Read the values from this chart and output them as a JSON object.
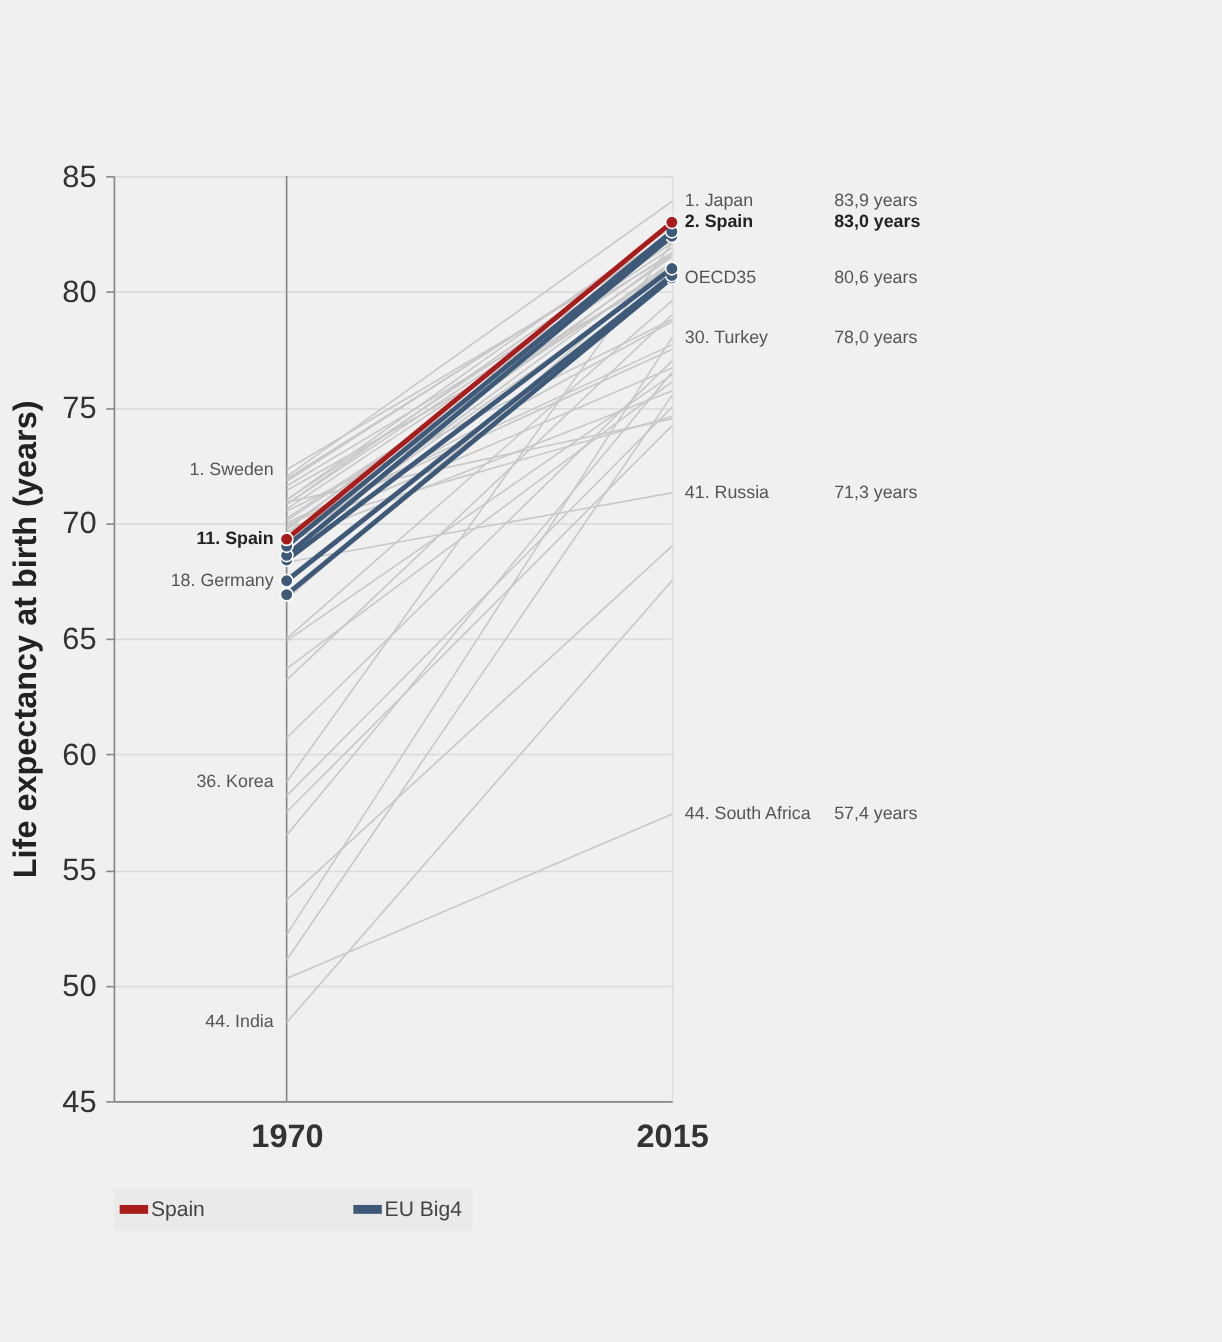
{
  "chart_data": {
    "type": "line",
    "ylabel": "Life expectancy at birth (years)",
    "categories": [
      "1970",
      "2015"
    ],
    "ylim": [
      45,
      85
    ],
    "yticks": [
      45,
      50,
      55,
      60,
      65,
      70,
      75,
      80,
      85
    ],
    "grid": "y",
    "legend": "bottom",
    "ref_lines": [
      {
        "axis": "x",
        "value": "1970",
        "color": "#888888"
      }
    ],
    "series": [
      {
        "color": "#c8c8c8",
        "values": [
          72.0,
          83.9
        ]
      },
      {
        "color": "#c8c8c8",
        "values": [
          72.3,
          82.2
        ]
      },
      {
        "color": "#c8c8c8",
        "values": [
          71.9,
          82.4
        ]
      },
      {
        "color": "#c8c8c8",
        "values": [
          71.6,
          81.6
        ]
      },
      {
        "color": "#c8c8c8",
        "values": [
          71.8,
          82.5
        ]
      },
      {
        "color": "#c8c8c8",
        "values": [
          71.4,
          80.8
        ]
      },
      {
        "color": "#c8c8c8",
        "values": [
          71.0,
          82.8
        ]
      },
      {
        "color": "#c8c8c8",
        "values": [
          71.0,
          82.1
        ]
      },
      {
        "color": "#c8c8c8",
        "values": [
          70.8,
          81.9
        ]
      },
      {
        "color": "#c8c8c8",
        "values": [
          70.8,
          82.5
        ]
      },
      {
        "color": "#c8c8c8",
        "values": [
          70.6,
          81.7
        ]
      },
      {
        "color": "#c8c8c8",
        "values": [
          70.5,
          78.8
        ]
      },
      {
        "color": "#c8c8c8",
        "values": [
          70.2,
          81.1
        ]
      },
      {
        "color": "#c8c8c8",
        "values": [
          70.1,
          81.1
        ]
      },
      {
        "color": "#c8c8c8",
        "values": [
          69.6,
          78.7
        ]
      },
      {
        "color": "#c8c8c8",
        "values": [
          69.7,
          82.4
        ]
      },
      {
        "color": "#c8c8c8",
        "values": [
          69.8,
          81.5
        ]
      },
      {
        "color": "#c8c8c8",
        "values": [
          69.3,
          81.6
        ]
      },
      {
        "color": "#c8c8c8",
        "values": [
          69.0,
          81.3
        ]
      },
      {
        "color": "#c8c8c8",
        "values": [
          69.6,
          76.7
        ]
      },
      {
        "color": "#c8c8c8",
        "values": [
          69.2,
          75.7
        ]
      },
      {
        "color": "#c8c8c8",
        "values": [
          69.9,
          77.5
        ]
      },
      {
        "color": "#c8c8c8",
        "values": [
          70.0,
          77.7
        ]
      },
      {
        "color": "#c8c8c8",
        "values": [
          69.8,
          74.6
        ]
      },
      {
        "color": "#c8c8c8",
        "values": [
          70.9,
          74.5
        ]
      },
      {
        "color": "#c8c8c8",
        "values": [
          69.0,
          80.9
        ]
      },
      {
        "color": "#c8c8c8",
        "values": [
          66.7,
          81.3
        ]
      },
      {
        "color": "#c8c8c8",
        "values": [
          65.0,
          79.6
        ]
      },
      {
        "color": "#c8c8c8",
        "values": [
          64.9,
          76.4
        ]
      },
      {
        "color": "#c8c8c8",
        "values": [
          63.7,
          76.1
        ]
      },
      {
        "color": "#c8c8c8",
        "values": [
          63.2,
          79.0
        ]
      },
      {
        "color": "#c8c8c8",
        "values": [
          60.7,
          77.0
        ]
      },
      {
        "color": "#c8c8c8",
        "values": [
          58.8,
          82.1
        ]
      },
      {
        "color": "#c8c8c8",
        "values": [
          58.2,
          75.0
        ]
      },
      {
        "color": "#c8c8c8",
        "values": [
          57.5,
          74.2
        ]
      },
      {
        "color": "#c8c8c8",
        "values": [
          56.5,
          76.5
        ]
      },
      {
        "color": "#c8c8c8",
        "values": [
          53.7,
          69.0
        ]
      },
      {
        "color": "#c8c8c8",
        "values": [
          52.2,
          78.0
        ]
      },
      {
        "color": "#c8c8c8",
        "values": [
          51.1,
          75.5
        ]
      },
      {
        "color": "#c8c8c8",
        "values": [
          68.3,
          71.3
        ]
      },
      {
        "color": "#c8c8c8",
        "values": [
          50.3,
          57.4
        ]
      },
      {
        "color": "#c8c8c8",
        "values": [
          48.4,
          67.5
        ]
      },
      {
        "color": "#3f5a78",
        "values": [
          66.9,
          80.6
        ],
        "marker": "circle"
      },
      {
        "color": "#3f5a78",
        "values": [
          67.5,
          80.7
        ],
        "marker": "circle"
      },
      {
        "color": "#3f5a78",
        "values": [
          68.4,
          81.0
        ],
        "marker": "circle"
      },
      {
        "color": "#3f5a78",
        "values": [
          68.6,
          82.4
        ],
        "marker": "circle"
      },
      {
        "name": "EU Big4",
        "color": "#3f5a78",
        "values": [
          69.0,
          82.6
        ],
        "marker": "circle"
      },
      {
        "name": "Spain",
        "color": "#a81c1c",
        "values": [
          69.3,
          83.0
        ],
        "marker": "circle"
      }
    ],
    "annotations": [
      {
        "text": "1. Sweden",
        "x": "1970",
        "y": 72.3
      },
      {
        "text": "11. Spain",
        "x": "1970",
        "y": 69.3
      },
      {
        "text": "18. Germany",
        "x": "1970",
        "y": 67.5
      },
      {
        "text": "36. Korea",
        "x": "1970",
        "y": 58.8
      },
      {
        "text": "44. India",
        "x": "1970",
        "y": 48.4
      },
      {
        "text": "1. Japan",
        "x": "2015",
        "y": 83.9
      },
      "83,9 years",
      {
        "text": "2. Spain",
        "x": "2015",
        "y": 83.0
      },
      "83,0 years",
      {
        "text": "OECD35",
        "x": "2015",
        "y": 80.6
      },
      "80,6 years",
      {
        "text": "30. Turkey",
        "x": "2015",
        "y": 78.0
      },
      "78,0 years",
      {
        "text": "41. Russia",
        "x": "2015",
        "y": 71.3
      },
      "71,3 years",
      {
        "text": "44. South Africa",
        "x": "2015",
        "y": 57.4
      },
      "57,4 years"
    ]
  }
}
